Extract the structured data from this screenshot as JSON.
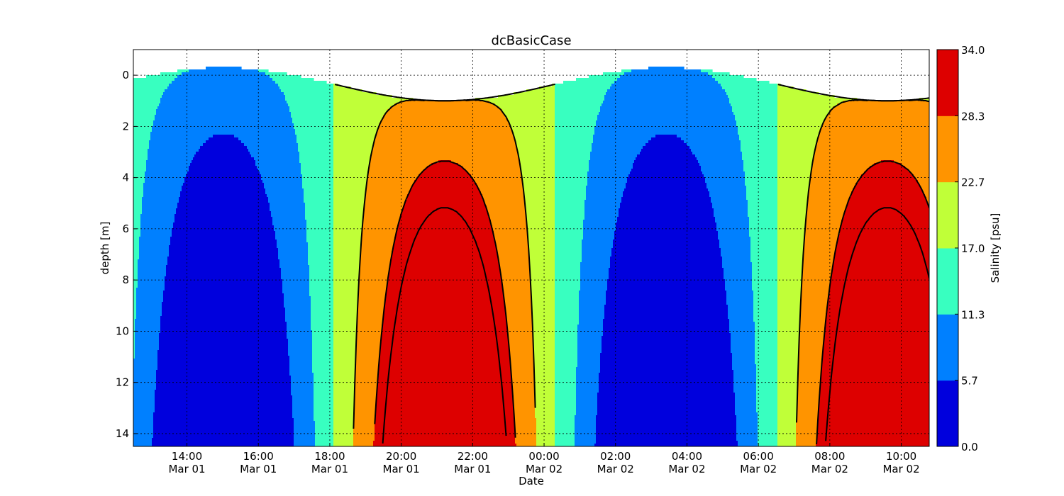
{
  "chart_data": {
    "type": "contour",
    "title": "dcBasicCase",
    "xlabel": "Date",
    "ylabel": "depth [m]",
    "colorbar_label": "Salinity [psu]",
    "x_ticks": [
      {
        "time": "14:00",
        "date": "Mar 01"
      },
      {
        "time": "16:00",
        "date": "Mar 01"
      },
      {
        "time": "18:00",
        "date": "Mar 01"
      },
      {
        "time": "20:00",
        "date": "Mar 01"
      },
      {
        "time": "22:00",
        "date": "Mar 01"
      },
      {
        "time": "00:00",
        "date": "Mar 02"
      },
      {
        "time": "02:00",
        "date": "Mar 02"
      },
      {
        "time": "04:00",
        "date": "Mar 02"
      },
      {
        "time": "06:00",
        "date": "Mar 02"
      },
      {
        "time": "08:00",
        "date": "Mar 02"
      },
      {
        "time": "10:00",
        "date": "Mar 02"
      }
    ],
    "x_range": [
      "2000-03-01 12:30",
      "2000-03-02 10:47"
    ],
    "y_ticks": [
      "0",
      "2",
      "4",
      "6",
      "8",
      "10",
      "12",
      "14"
    ],
    "ylim": [
      14.5,
      -1.0
    ],
    "y_inverted": true,
    "grid": true,
    "levels": [
      "0.0",
      "5.7",
      "11.3",
      "17.0",
      "22.7",
      "28.3",
      "34.0"
    ],
    "level_colors": [
      "#0000dd",
      "#0080ff",
      "#38ffc0",
      "#c0ff38",
      "#ff9400",
      "#dd0000"
    ],
    "tidal_period_hours": 12.4,
    "surface_elevation_m": {
      "mean": 0.35,
      "amplitude": 0.65
    },
    "salinity_cycle": {
      "min_time": "15:00",
      "max_time": "21:13",
      "min_psu": 0.0,
      "max_psu": 34.0
    },
    "contour_lines_psu": [
      17,
      22.7,
      28.3,
      30.5
    ]
  }
}
